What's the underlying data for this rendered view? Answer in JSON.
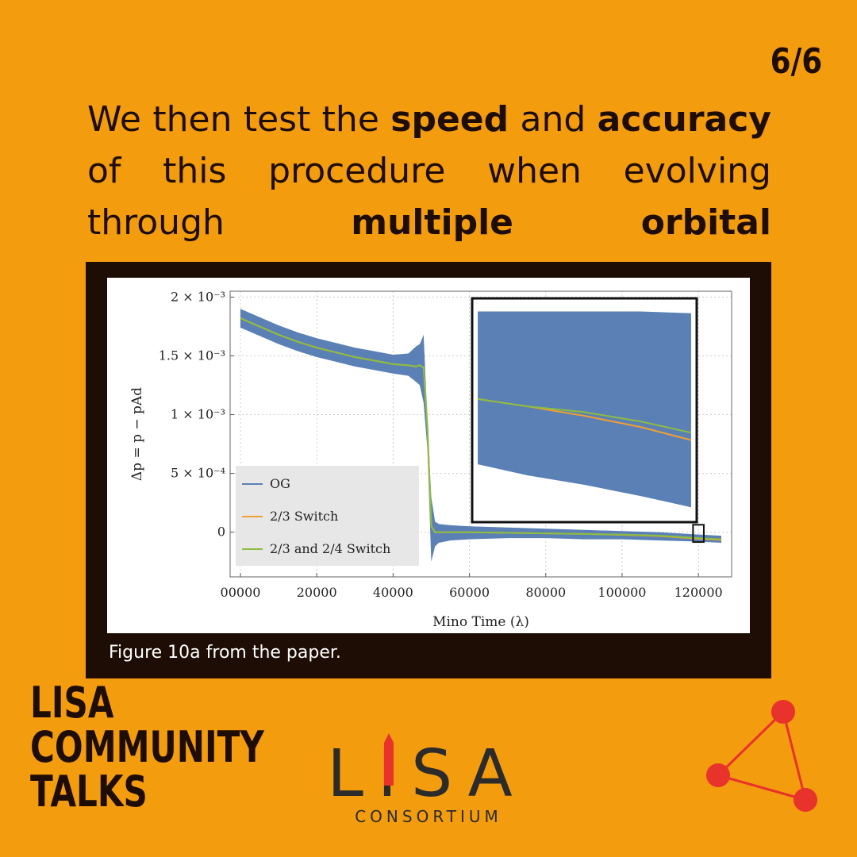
{
  "page_number": "6/6",
  "heading": [
    {
      "text": "We then test the ",
      "bold": false
    },
    {
      "text": "speed",
      "bold": true
    },
    {
      "text": " and ",
      "bold": false
    },
    {
      "text": "accuracy",
      "bold": true
    },
    {
      "text": " of this procedure when evolving through ",
      "bold": false
    },
    {
      "text": "multiple orbital resonances.",
      "bold": true
    }
  ],
  "chart_data": {
    "type": "line",
    "x_label": "Mino Time (λ)",
    "y_label": "Δp = p − pAd",
    "xlim": [
      -2700,
      128700
    ],
    "ylim": [
      -0.00038,
      0.00205
    ],
    "xticks": [
      {
        "value": 0,
        "label": "00000"
      },
      20000,
      40000,
      60000,
      80000,
      100000,
      120000
    ],
    "yticks": [
      0,
      {
        "value": 0.0005,
        "label": "5 × 10⁻⁴"
      },
      {
        "value": 0.001,
        "label": "1 × 10⁻³"
      },
      {
        "value": 0.0015,
        "label": "1.5 × 10⁻³"
      },
      {
        "value": 0.002,
        "label": "2 × 10⁻³"
      }
    ],
    "grid": true,
    "legend": "lower-left",
    "x": [
      0,
      5000,
      10000,
      15000,
      20000,
      25000,
      30000,
      35000,
      40000,
      44000,
      46000,
      47000,
      48000,
      49000,
      50000,
      51000,
      52000,
      55000,
      60000,
      70000,
      80000,
      90000,
      100000,
      110000,
      120000,
      126000
    ],
    "series": [
      {
        "name": "OG",
        "color": "#5b80b6",
        "values": [
          0.00182,
          0.00175,
          0.00168,
          0.00162,
          0.00157,
          0.00153,
          0.00149,
          0.00146,
          0.00143,
          0.00142,
          0.00141,
          0.00142,
          0.0014,
          0.0009,
          5e-05,
          0,
          0,
          0,
          0,
          -5e-06,
          -1e-05,
          -1.5e-05,
          -2e-05,
          -3e-05,
          -5e-05,
          -6e-05
        ],
        "upper": [
          0.0019,
          0.00183,
          0.00176,
          0.0017,
          0.00165,
          0.00161,
          0.00157,
          0.00154,
          0.00151,
          0.00152,
          0.00158,
          0.0016,
          0.00168,
          0.00095,
          0.0003,
          9e-05,
          7e-05,
          6e-05,
          5e-05,
          4e-05,
          3e-05,
          2e-05,
          1e-05,
          0,
          -2e-05,
          -3e-05
        ],
        "lower": [
          0.00174,
          0.00167,
          0.0016,
          0.00154,
          0.00149,
          0.00145,
          0.00141,
          0.00138,
          0.00135,
          0.00133,
          0.00128,
          0.00125,
          0.0011,
          0.0007,
          -0.00025,
          -0.00012,
          -9e-05,
          -7e-05,
          -6e-05,
          -5e-05,
          -5e-05,
          -6e-05,
          -6e-05,
          -7e-05,
          -8e-05,
          -9e-05
        ]
      },
      {
        "name": "2/3 Switch",
        "color": "#f0a030",
        "values": [
          0.00182,
          0.00175,
          0.00168,
          0.00162,
          0.00157,
          0.00153,
          0.00149,
          0.00146,
          0.00143,
          0.00142,
          0.00141,
          0.00142,
          0.0014,
          0.0009,
          5e-05,
          0,
          0,
          0,
          0,
          -5e-06,
          -1e-05,
          -1.5e-05,
          -2.2e-05,
          -3.3e-05,
          -5.5e-05,
          -6.5e-05
        ]
      },
      {
        "name": "2/3 and 2/4 Switch",
        "color": "#8cbd40",
        "values": [
          0.00182,
          0.00175,
          0.00168,
          0.00162,
          0.00157,
          0.00153,
          0.00149,
          0.00146,
          0.00143,
          0.00142,
          0.00141,
          0.00142,
          0.0014,
          0.0009,
          5e-05,
          0,
          0,
          0,
          0,
          -5e-06,
          -1e-05,
          -1.5e-05,
          -2e-05,
          -3e-05,
          -5e-05,
          -6e-05
        ]
      }
    ],
    "inset": {
      "xlim": [
        119000,
        121000
      ],
      "ylim": [
        -7e-05,
        5e-05
      ],
      "x": [
        119050,
        119500,
        120000,
        120500,
        120950
      ],
      "upper": [
        4.3e-05,
        4.3e-05,
        4.3e-05,
        4.3e-05,
        4.2e-05
      ],
      "lower": [
        -3.9e-05,
        -4.5e-05,
        -5e-05,
        -5.6e-05,
        -6.2e-05
      ],
      "orange": [
        -4e-06,
        -8e-06,
        -1.3e-05,
        -1.9e-05,
        -2.6e-05
      ],
      "green": [
        -4e-06,
        -8e-06,
        -1.1e-05,
        -1.6e-05,
        -2.2e-05
      ]
    }
  },
  "caption": "Figure 10a from the paper.",
  "brand": [
    "LISA",
    "COMMUNITY",
    "TALKS"
  ],
  "logo": {
    "name": "LISA",
    "sub": "CONSORTIUM"
  }
}
